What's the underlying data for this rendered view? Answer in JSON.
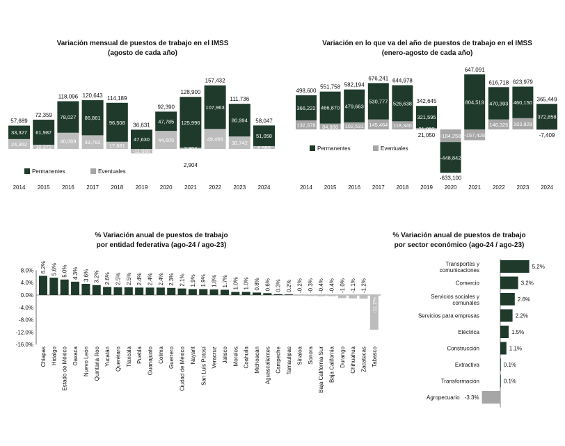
{
  "colors": {
    "dark": "#1f3a2b",
    "gray": "#a6a6a6",
    "lightgray": "#bdbdbd"
  },
  "chart_data": [
    {
      "id": "c1",
      "type": "bar",
      "title": "Variación mensual de puestos de trabajo en el IMSS",
      "subtitle": "(agosto de cada año)",
      "categories": [
        "2014",
        "2015",
        "2016",
        "2017",
        "2018",
        "2019",
        "2020",
        "2021",
        "2022",
        "2023",
        "2024"
      ],
      "totals": [
        "57,689",
        "72,359",
        "118,096",
        "120,643",
        "114,189",
        "36,631",
        "92,390",
        "128,900",
        "157,432",
        "111,736",
        "58,047"
      ],
      "series": [
        {
          "name": "Permanentes",
          "values": [
            33327,
            61987,
            78027,
            86861,
            96508,
            47630,
            47785,
            125996,
            107963,
            80994,
            51058
          ],
          "labels": [
            "33,327",
            "61,987",
            "78,027",
            "86,861",
            "96,508",
            "47,630",
            "47,785",
            "125,996",
            "107,963",
            "80,994",
            "51,058"
          ]
        },
        {
          "name": "Eventuales",
          "values": [
            24362,
            10372,
            40069,
            33782,
            17681,
            -11000,
            44605,
            2904,
            49469,
            30742,
            6989
          ],
          "labels": [
            "24,362",
            "10,372",
            "40,069",
            "33,782",
            "17,681",
            "-11,000",
            "44,605",
            "2,904",
            "49,469",
            "30,742",
            "6,989"
          ]
        }
      ],
      "legend": "bottom-left"
    },
    {
      "id": "c2",
      "type": "bar",
      "title": "Variación en lo que va del año de puestos de trabajo en el IMSS",
      "subtitle": "(enero-agosto de cada año)",
      "categories": [
        "2014",
        "2015",
        "2016",
        "2017",
        "2018",
        "2019",
        "2020",
        "2021",
        "2022",
        "2023",
        "2024"
      ],
      "totals": [
        "498,600",
        "551,758",
        "582,194",
        "676,241",
        "644,978",
        "342,645",
        "-633,100",
        "647,091",
        "616,718",
        "623,979",
        "365,449"
      ],
      "series": [
        {
          "name": "Permanentes",
          "values": [
            366222,
            466870,
            479663,
            530777,
            526638,
            321595,
            -448842,
            804519,
            470393,
            460150,
            372858
          ],
          "labels": [
            "366,222",
            "466,870",
            "479,663",
            "530,777",
            "526,638",
            "321,595",
            "-448,842",
            "804,519",
            "470,393",
            "460,150",
            "372,858"
          ]
        },
        {
          "name": "Eventuales",
          "values": [
            132378,
            84888,
            102531,
            145464,
            118340,
            21050,
            -184258,
            -157428,
            146325,
            163829,
            -7409
          ],
          "labels": [
            "132,378",
            "84,888",
            "102,531",
            "145,464",
            "118,340",
            "21,050",
            "-184,258",
            "-157,428",
            "146,325",
            "163,829",
            "-7,409"
          ]
        }
      ],
      "legend": "bottom-left"
    },
    {
      "id": "c3",
      "type": "bar",
      "title": "% Variación anual de puestos de trabajo",
      "subtitle": "por entidad federativa (ago-24 / ago-23)",
      "categories": [
        "Chiapas",
        "Hidalgo",
        "Estado de México",
        "Oaxaca",
        "Nuevo León",
        "Quintana Roo",
        "Yucatán",
        "Querétaro",
        "Tlaxcala",
        "Puebla",
        "Guanajuato",
        "Colima",
        "Guerrero",
        "Ciudad de México",
        "Nayarit",
        "San Luis Potosí",
        "Veracruz",
        "Jalisco",
        "Morelos",
        "Coahuila",
        "Michoacán",
        "Aguascalientes",
        "Campeche",
        "Tamaulipas",
        "Sinaloa",
        "Sonora",
        "Baja California Sur",
        "Baja California",
        "Durango",
        "Chihuahua",
        "Zacatecas",
        "Tabasco"
      ],
      "values": [
        6.2,
        5.6,
        5.0,
        4.3,
        3.6,
        3.2,
        2.6,
        2.5,
        2.5,
        2.4,
        2.4,
        2.4,
        2.3,
        2.1,
        1.9,
        1.9,
        1.8,
        1.7,
        1.0,
        1.0,
        0.8,
        0.6,
        0.3,
        0.2,
        -0.2,
        -0.3,
        -0.4,
        -0.4,
        -1.0,
        -1.1,
        -1.2,
        -11.2
      ],
      "labels": [
        "6.2%",
        "5.6%",
        "5.0%",
        "4.3%",
        "3.6%",
        "3.2%",
        "2.6%",
        "2.5%",
        "2.5%",
        "2.4%",
        "2.4%",
        "2.4%",
        "2.3%",
        "2.1%",
        "1.9%",
        "1.9%",
        "1.8%",
        "1.7%",
        "1.0%",
        "1.0%",
        "0.8%",
        "0.6%",
        "0.3%",
        "0.2%",
        "-0.2%",
        "-0.3%",
        "-0.4%",
        "-0.4%",
        "-1.0%",
        "-1.1%",
        "-1.2%",
        "-11.2%"
      ],
      "yticks": [
        "8.0%",
        "4.0%",
        "0.0%",
        "-4.0%",
        "-8.0%",
        "-12.0%",
        "-16.0%"
      ],
      "ylim": [
        -16,
        8
      ]
    },
    {
      "id": "c4",
      "type": "bar",
      "title": "% Variación anual de puestos de trabajo",
      "subtitle": "por sector económico (ago-24 / ago-23)",
      "categories": [
        [
          "Transportes y",
          "comunicaciones"
        ],
        [
          "Comercio"
        ],
        [
          "Servicios sociales y",
          "comunales"
        ],
        [
          "Servicios para empresas"
        ],
        [
          "Eléctrica"
        ],
        [
          "Construcción"
        ],
        [
          "Extractiva"
        ],
        [
          "Transformación"
        ],
        [
          "Agropecuario"
        ]
      ],
      "values": [
        5.2,
        3.2,
        2.6,
        2.2,
        1.5,
        1.1,
        0.1,
        0.1,
        -3.3
      ],
      "labels": [
        "5.2%",
        "3.2%",
        "2.6%",
        "2.2%",
        "1.5%",
        "1.1%",
        "0.1%",
        "0.1%",
        "-3.3%"
      ]
    }
  ]
}
